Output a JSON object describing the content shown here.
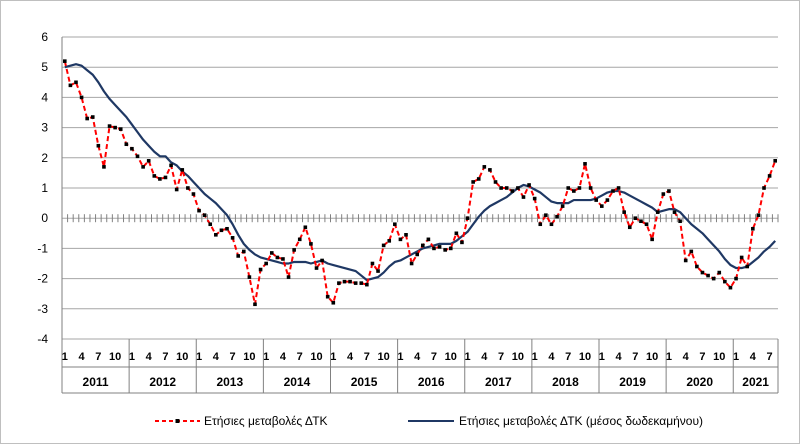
{
  "chart_data": {
    "type": "line",
    "title": "",
    "xlabel": "",
    "ylabel": "",
    "ylim": [
      -4,
      6
    ],
    "yticks": [
      6,
      5,
      4,
      3,
      2,
      1,
      0,
      -1,
      -2,
      -3,
      -4
    ],
    "grid": true,
    "legend_position": "bottom",
    "month_tick_labels": [
      "1",
      "4",
      "7",
      "10"
    ],
    "years": [
      "2011",
      "2012",
      "2013",
      "2014",
      "2015",
      "2016",
      "2017",
      "2018",
      "2019",
      "2020",
      "2021"
    ],
    "months_in_last_year": 8,
    "series": [
      {
        "name": "Ετήσιες μεταβολές ΔΤΚ",
        "color": "#ff0000",
        "marker_color": "#000000",
        "style": "dashed-with-markers",
        "values": [
          5.2,
          4.4,
          4.5,
          4.0,
          3.3,
          3.35,
          2.4,
          1.7,
          3.05,
          3.0,
          2.95,
          2.45,
          2.3,
          2.05,
          1.7,
          1.9,
          1.4,
          1.3,
          1.35,
          1.75,
          0.95,
          1.6,
          1.0,
          0.8,
          0.25,
          0.1,
          -0.2,
          -0.55,
          -0.4,
          -0.35,
          -0.65,
          -1.25,
          -1.1,
          -1.95,
          -2.85,
          -1.7,
          -1.5,
          -1.15,
          -1.3,
          -1.35,
          -1.95,
          -1.05,
          -0.7,
          -0.3,
          -0.85,
          -1.65,
          -1.4,
          -2.6,
          -2.8,
          -2.15,
          -2.1,
          -2.1,
          -2.15,
          -2.15,
          -2.2,
          -1.5,
          -1.75,
          -0.9,
          -0.75,
          -0.2,
          -0.7,
          -0.55,
          -1.5,
          -1.2,
          -0.9,
          -0.7,
          -1.0,
          -0.95,
          -1.05,
          -1.0,
          -0.5,
          -0.8,
          0.0,
          1.2,
          1.3,
          1.7,
          1.6,
          1.2,
          1.0,
          1.0,
          0.9,
          1.0,
          0.7,
          1.1,
          0.65,
          -0.2,
          0.1,
          -0.2,
          0.05,
          0.4,
          1.0,
          0.9,
          1.0,
          1.8,
          1.0,
          0.6,
          0.4,
          0.6,
          0.9,
          1.0,
          0.2,
          -0.3,
          0.0,
          -0.1,
          -0.2,
          -0.7,
          0.2,
          0.8,
          0.9,
          0.2,
          -0.1,
          -1.4,
          -1.1,
          -1.6,
          -1.8,
          -1.9,
          -2.0,
          -1.8,
          -2.1,
          -2.3,
          -2.0,
          -1.3,
          -1.6,
          -0.35,
          0.1,
          1.0,
          1.4,
          1.9
        ]
      },
      {
        "name": "Ετήσιες μεταβολές ΔΤΚ (μέσος δωδεκαμήνου)",
        "color": "#1f3864",
        "style": "solid",
        "values": [
          5.0,
          5.05,
          5.1,
          5.05,
          4.9,
          4.75,
          4.5,
          4.2,
          3.95,
          3.75,
          3.55,
          3.35,
          3.1,
          2.85,
          2.6,
          2.4,
          2.2,
          2.05,
          2.05,
          1.85,
          1.75,
          1.55,
          1.4,
          1.2,
          1.0,
          0.8,
          0.65,
          0.5,
          0.3,
          0.1,
          -0.2,
          -0.55,
          -0.85,
          -1.05,
          -1.2,
          -1.3,
          -1.35,
          -1.4,
          -1.45,
          -1.5,
          -1.5,
          -1.45,
          -1.45,
          -1.45,
          -1.5,
          -1.45,
          -1.4,
          -1.5,
          -1.55,
          -1.6,
          -1.65,
          -1.7,
          -1.75,
          -1.9,
          -2.05,
          -2.0,
          -1.95,
          -1.8,
          -1.6,
          -1.45,
          -1.4,
          -1.3,
          -1.2,
          -1.1,
          -1.0,
          -0.95,
          -0.9,
          -0.85,
          -0.85,
          -0.85,
          -0.75,
          -0.6,
          -0.45,
          -0.2,
          0.05,
          0.25,
          0.4,
          0.5,
          0.6,
          0.7,
          0.85,
          1.0,
          1.1,
          1.05,
          0.95,
          0.85,
          0.7,
          0.55,
          0.5,
          0.5,
          0.5,
          0.6,
          0.6,
          0.6,
          0.6,
          0.65,
          0.75,
          0.85,
          0.9,
          0.9,
          0.85,
          0.75,
          0.65,
          0.55,
          0.45,
          0.35,
          0.2,
          0.25,
          0.3,
          0.3,
          0.2,
          0.0,
          -0.2,
          -0.35,
          -0.5,
          -0.7,
          -0.9,
          -1.1,
          -1.35,
          -1.55,
          -1.65,
          -1.65,
          -1.6,
          -1.45,
          -1.3,
          -1.1,
          -0.95,
          -0.75
        ]
      }
    ]
  }
}
